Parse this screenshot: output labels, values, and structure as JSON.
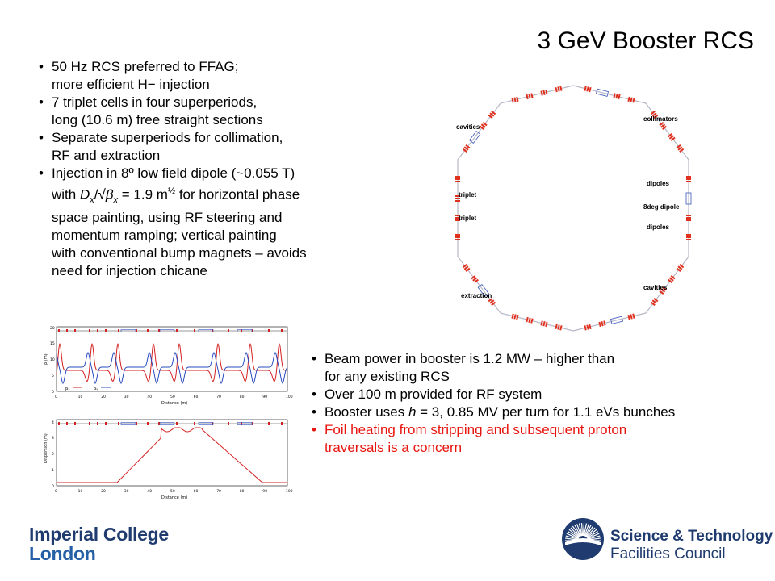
{
  "slide": {
    "title": "3 GeV Booster RCS"
  },
  "bullets_left": [
    {
      "line1": "50 Hz RCS preferred to FFAG;",
      "line2": "more efficient H− injection"
    },
    {
      "line1": "7 triplet cells in four superperiods,",
      "line2": "long (10.6 m) free straight sections"
    },
    {
      "line1": "Separate superperiods for collimation,",
      "line2": "RF and extraction"
    }
  ],
  "bullet_injection": {
    "l1": "Injection in 8º low field dipole (~0.055 T)",
    "l2_pre": "with ",
    "l2_D": "D",
    "l2_sub_x": "x",
    "l2_mid": "/√",
    "l2_beta": "β",
    "l2_sub_x2": "x",
    "l2_post": " = 1.9 m",
    "l2_sup": "½",
    "l2_end": " for horizontal phase",
    "l3": "space painting, using RF steering and",
    "l4": "momentum ramping; vertical painting",
    "l5": "with conventional bump magnets – avoids",
    "l6": "need for injection chicane"
  },
  "bullets_right": [
    {
      "line1": "Beam power in booster is 1.2 MW – higher than",
      "line2": "for any existing RCS"
    },
    {
      "line1": "Over 100 m provided for RF system",
      "line2": ""
    }
  ],
  "bullet_h": {
    "pre": "Booster uses ",
    "h": "h",
    "post": " = 3, 0.85 MV per turn for 1.1 eVs bunches"
  },
  "bullet_red": {
    "line1": "Foil heating from stripping and subsequent proton",
    "line2": "traversals is a concern"
  },
  "ring_labels": {
    "cavities_tl": "cavities",
    "collimators": "collimators",
    "triplet1": "triplet",
    "triplet2": "triplet",
    "dipoles1": "dipoles",
    "dipole8": "8deg dipole",
    "dipoles2": "dipoles",
    "extraction": "extraction",
    "cavities_br": "cavities"
  },
  "plot_labels": {
    "p1_y_ticks": [
      "0",
      "5",
      "10",
      "15",
      "20"
    ],
    "p1_x_ticks": [
      "0",
      "10",
      "20",
      "30",
      "40",
      "50",
      "60",
      "70",
      "80",
      "90",
      "100"
    ],
    "p1_xlabel": "Distance (m)",
    "p1_ylabel": "β (m)",
    "p1_legend_a": "βₓ",
    "p1_legend_b": "βᵧ",
    "p2_y_ticks": [
      "0",
      "1",
      "2",
      "3",
      "4"
    ],
    "p2_x_ticks": [
      "0",
      "10",
      "20",
      "30",
      "40",
      "50",
      "60",
      "70",
      "80",
      "90",
      "100"
    ],
    "p2_xlabel": "Distance (m)",
    "p2_ylabel": "Dispersion (m)"
  },
  "logos": {
    "imperial_line1": "Imperial College",
    "imperial_line2": "London",
    "stfc_line1": "Science & Technology",
    "stfc_line2": "Facilities Council"
  },
  "colors": {
    "red_text": "#e8150f",
    "plot_red": "#d42020",
    "plot_blue": "#2a4cc0",
    "magnet_red": "#e0301e",
    "magnet_blue": "#3a56b8",
    "logo_blue": "#1f3b6f"
  }
}
